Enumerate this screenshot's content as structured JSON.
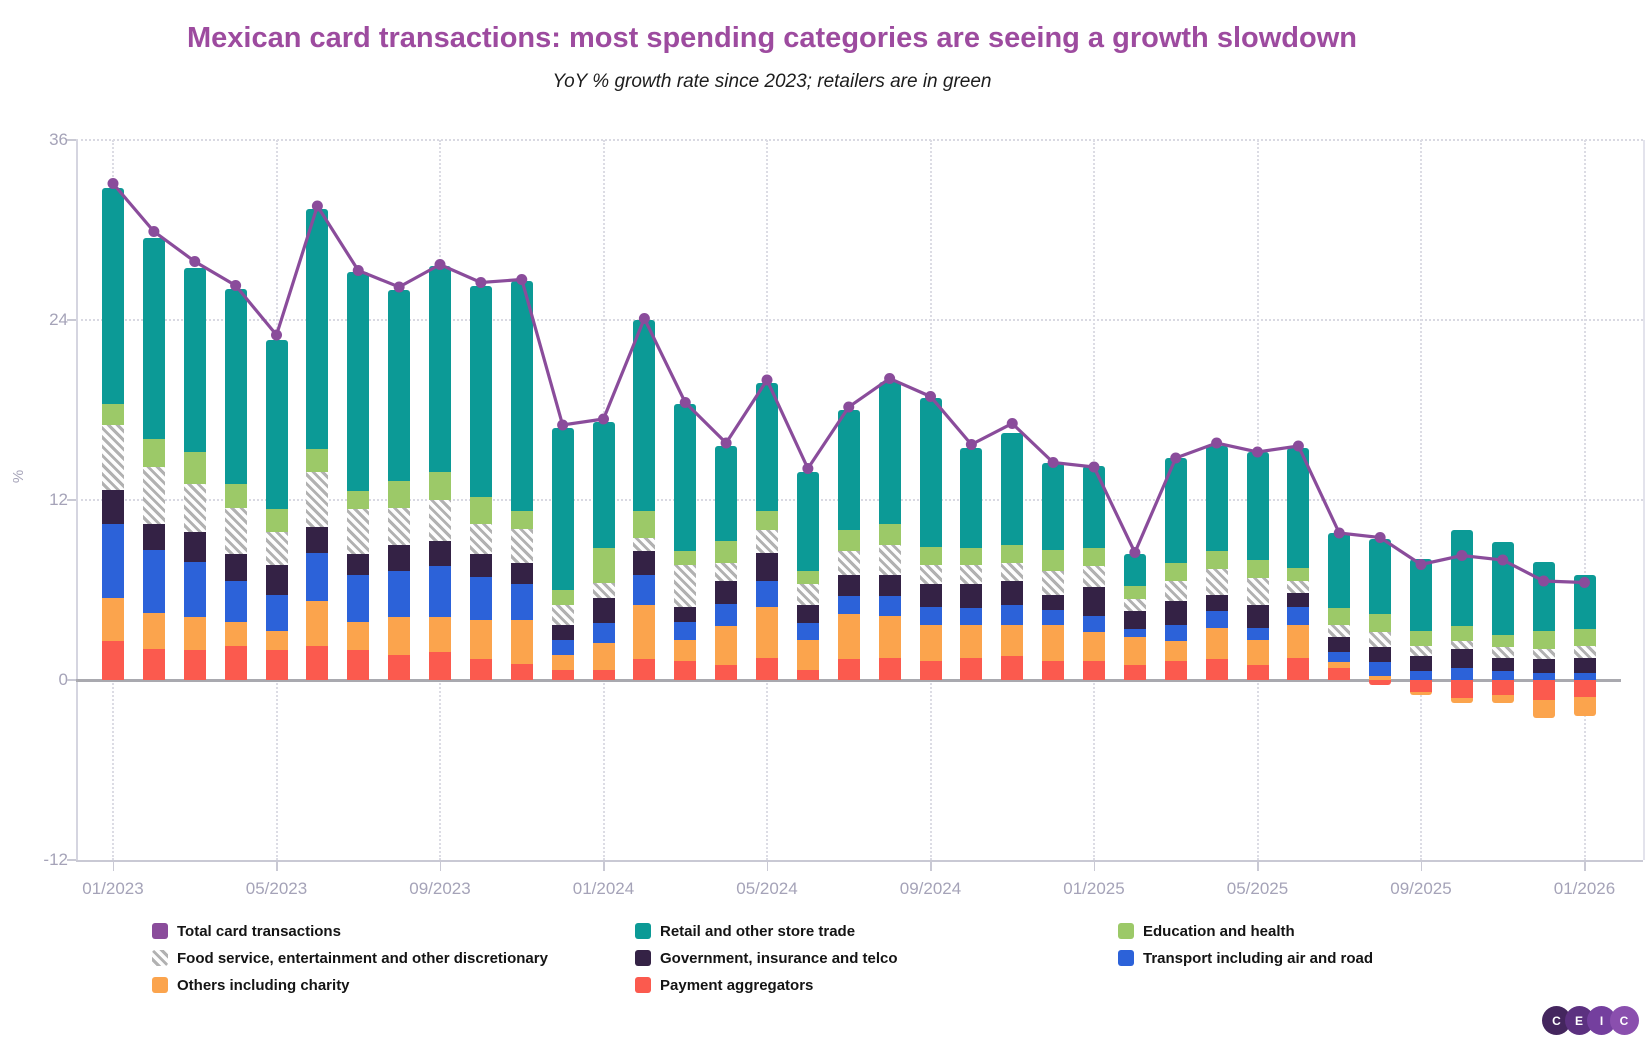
{
  "title": "Mexican card transactions: most spending categories are seeing a growth slowdown",
  "subtitle": "YoY % growth rate since 2023; retailers are in green",
  "title_color": "#9d4b9f",
  "y_axis": {
    "label": "%",
    "ticks": [
      36,
      24,
      12,
      0,
      -12
    ],
    "min": -12,
    "max": 36
  },
  "x_axis": {
    "shown_tick_labels": [
      "01/2023",
      "05/2023",
      "09/2023",
      "01/2024",
      "05/2024",
      "09/2024",
      "01/2025",
      "05/2025",
      "09/2025",
      "01/2026"
    ]
  },
  "chart_data": {
    "type": "bar",
    "subtype": "stacked-bar-with-line",
    "title": "Mexican card transactions: most spending categories are seeing a growth slowdown",
    "xlabel": "",
    "ylabel": "%",
    "ylim": [
      -12,
      36
    ],
    "grid": "dotted horizontal at 36/24/12, dotted vertical at 4-month ticks, solid gray zero line",
    "categories": [
      "01/2023",
      "02/2023",
      "03/2023",
      "04/2023",
      "05/2023",
      "06/2023",
      "07/2023",
      "08/2023",
      "09/2023",
      "10/2023",
      "11/2023",
      "12/2023",
      "01/2024",
      "02/2024",
      "03/2024",
      "04/2024",
      "05/2024",
      "06/2024",
      "07/2024",
      "08/2024",
      "09/2024",
      "10/2024",
      "11/2024",
      "12/2024",
      "01/2025",
      "02/2025",
      "03/2025",
      "04/2025",
      "05/2025",
      "06/2025",
      "07/2025",
      "08/2025",
      "09/2025",
      "10/2025",
      "11/2025",
      "12/2025",
      "01/2026"
    ],
    "series": [
      {
        "name": "Payment aggregators",
        "color": "#fb5a4e",
        "pattern": "solid",
        "values": [
          2.6,
          2.1,
          2.0,
          2.3,
          2.0,
          2.3,
          2.0,
          1.7,
          1.9,
          1.4,
          1.1,
          0.7,
          0.7,
          1.4,
          1.3,
          1.0,
          1.5,
          0.7,
          1.4,
          1.5,
          1.3,
          1.5,
          1.6,
          1.3,
          1.3,
          1.0,
          1.3,
          1.4,
          1.0,
          1.5,
          0.8,
          -0.3,
          -0.8,
          -1.2,
          -1.0,
          -1.3,
          -1.1
        ]
      },
      {
        "name": "Others including charity",
        "color": "#fba44d",
        "pattern": "solid",
        "values": [
          2.9,
          2.4,
          2.2,
          1.6,
          1.3,
          3.0,
          1.9,
          2.5,
          2.3,
          2.6,
          2.9,
          1.0,
          1.8,
          3.6,
          1.4,
          2.6,
          3.4,
          2.0,
          3.0,
          2.8,
          2.4,
          2.2,
          2.1,
          2.4,
          1.9,
          1.9,
          1.3,
          2.1,
          1.7,
          2.2,
          0.4,
          0.3,
          -0.2,
          -0.3,
          -0.5,
          -1.2,
          -1.3
        ]
      },
      {
        "name": "Transport including air and road",
        "color": "#2c62d9",
        "pattern": "solid",
        "values": [
          4.9,
          4.2,
          3.7,
          2.7,
          2.4,
          3.2,
          3.1,
          3.1,
          3.4,
          2.9,
          2.4,
          1.0,
          1.3,
          2.0,
          1.2,
          1.5,
          1.7,
          1.1,
          1.2,
          1.3,
          1.2,
          1.1,
          1.3,
          1.0,
          1.1,
          0.5,
          1.1,
          1.1,
          0.8,
          1.2,
          0.7,
          0.9,
          0.6,
          0.8,
          0.6,
          0.5,
          0.5
        ]
      },
      {
        "name": "Government, insurance and telco",
        "color": "#342245",
        "pattern": "solid",
        "values": [
          2.3,
          1.7,
          2.0,
          1.8,
          2.0,
          1.7,
          1.4,
          1.7,
          1.7,
          1.5,
          1.4,
          1.0,
          1.7,
          1.6,
          1.0,
          1.5,
          1.9,
          1.2,
          1.4,
          1.4,
          1.5,
          1.6,
          1.6,
          1.0,
          1.9,
          1.2,
          1.6,
          1.1,
          1.5,
          0.9,
          1.0,
          1.0,
          1.0,
          1.3,
          0.9,
          0.9,
          1.0
        ]
      },
      {
        "name": "Food service, entertainment and other discretionary",
        "color": "#b1b1b1",
        "pattern": "hatch",
        "values": [
          4.3,
          3.8,
          3.2,
          3.1,
          2.2,
          3.7,
          3.0,
          2.5,
          2.7,
          2.0,
          2.3,
          1.3,
          1.0,
          0.9,
          2.8,
          1.2,
          1.5,
          1.4,
          1.6,
          2.0,
          1.3,
          1.3,
          1.2,
          1.6,
          1.4,
          0.8,
          1.3,
          1.7,
          1.8,
          0.8,
          0.8,
          1.0,
          0.7,
          0.5,
          0.7,
          0.7,
          0.8
        ]
      },
      {
        "name": "Education and health",
        "color": "#9cc968",
        "pattern": "solid",
        "values": [
          1.4,
          1.9,
          2.1,
          1.6,
          1.5,
          1.5,
          1.2,
          1.8,
          1.9,
          1.8,
          1.2,
          1.0,
          2.3,
          1.8,
          0.9,
          1.5,
          1.3,
          0.9,
          1.4,
          1.4,
          1.2,
          1.1,
          1.2,
          1.4,
          1.2,
          0.9,
          1.2,
          1.2,
          1.2,
          0.9,
          1.1,
          1.2,
          1.0,
          1.0,
          0.8,
          1.2,
          1.1
        ]
      },
      {
        "name": "Retail and other store trade",
        "color": "#0c9a96",
        "pattern": "solid",
        "values": [
          14.4,
          13.4,
          12.3,
          13.0,
          11.3,
          16.0,
          14.6,
          12.7,
          13.7,
          14.1,
          15.3,
          10.8,
          8.4,
          12.7,
          9.8,
          6.3,
          8.5,
          6.6,
          8.0,
          9.5,
          9.9,
          6.7,
          7.5,
          5.8,
          5.5,
          2.1,
          7.0,
          7.0,
          7.2,
          8.0,
          5.0,
          5.0,
          4.8,
          6.4,
          6.2,
          4.6,
          3.6
        ]
      }
    ],
    "line_series": {
      "name": "Total card transactions",
      "color": "#8a4c9b",
      "values": [
        33.1,
        29.9,
        27.9,
        26.3,
        23.0,
        31.6,
        27.3,
        26.2,
        27.7,
        26.5,
        26.7,
        17.0,
        17.4,
        24.1,
        18.5,
        15.8,
        20.0,
        14.1,
        18.2,
        20.1,
        18.9,
        15.7,
        17.1,
        14.5,
        14.2,
        8.5,
        14.8,
        15.8,
        15.2,
        15.6,
        9.8,
        9.5,
        7.7,
        8.3,
        8.0,
        6.6,
        6.5
      ]
    },
    "legend_position": "bottom"
  },
  "legend": {
    "items": [
      {
        "label": "Total card transactions",
        "color": "#8a4c9b",
        "pattern": "solid"
      },
      {
        "label": "Retail and other store trade",
        "color": "#0c9a96",
        "pattern": "solid"
      },
      {
        "label": "Education and health",
        "color": "#9cc968",
        "pattern": "solid"
      },
      {
        "label": "Food service, entertainment and other discretionary",
        "color": "#b1b1b1",
        "pattern": "hatch"
      },
      {
        "label": "Government, insurance and telco",
        "color": "#342245",
        "pattern": "solid"
      },
      {
        "label": "Transport including air and road",
        "color": "#2c62d9",
        "pattern": "solid"
      },
      {
        "label": "Others including charity",
        "color": "#fba44d",
        "pattern": "solid"
      },
      {
        "label": "Payment aggregators",
        "color": "#fb5a4e",
        "pattern": "solid"
      }
    ]
  },
  "logo": {
    "letters": [
      "C",
      "E",
      "I",
      "C"
    ],
    "colors": [
      "#44265e",
      "#5c3180",
      "#743f9e",
      "#8a4fae"
    ]
  }
}
